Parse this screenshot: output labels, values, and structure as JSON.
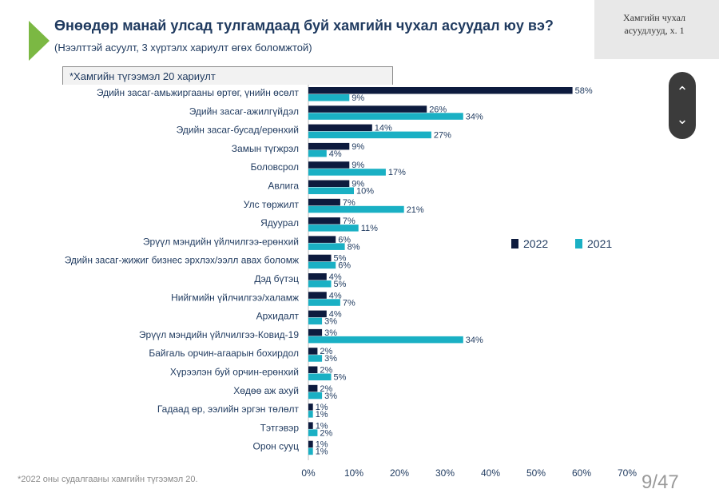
{
  "header": {
    "title": "Өнөөдөр манай улсад тулгамдаад буй хамгийн чухал асуудал юу вэ?",
    "subtitle": "(Нээлттэй асуулт, 3 хүртэлх хариулт өгөх боломжтой)",
    "corner_tag_line1": "Хамгийн чухал",
    "corner_tag_line2": "асуудлууд, х. 1",
    "filter_tag": "*Хамгийн түгээмэл 20 хариулт"
  },
  "nav": {
    "up_icon": "chevron-up-icon",
    "down_icon": "chevron-down-icon",
    "up_glyph": "⌃",
    "down_glyph": "⌄"
  },
  "footer": {
    "footnote": "*2022 оны судалгааны хамгийн түгээмэл 20.",
    "pager": "9/47"
  },
  "colors": {
    "s2022": "#0d1b3e",
    "s2021": "#1ab0c4",
    "accent_green": "#7bb843"
  },
  "chart_data": {
    "type": "bar",
    "orientation": "horizontal",
    "categories": [
      "Эдийн засаг-амьжиргааны өртөг, үнийн өсөлт",
      "Эдийн засаг-ажилгүйдэл",
      "Эдийн засаг-бусад/ерөнхий",
      "Замын түгжрэл",
      "Боловсрол",
      "Авлига",
      "Улс төржилт",
      "Ядуурал",
      "Эрүүл мэндийн үйлчилгээ-ерөнхий",
      "Эдийн засаг-жижиг бизнес эрхлэх/ээлл авах боломж",
      "Дэд бүтэц",
      "Нийгмийн үйлчилгээ/халамж",
      "Архидалт",
      "Эрүүл мэндийн үйлчилгээ-Ковид-19",
      "Байгаль орчин-агаарын бохирдол",
      "Хүрээлэн буй орчин-ерөнхий",
      "Хөдөө аж ахуй",
      "Гадаад өр, ээлийн эргэн төлөлт",
      "Тэтгэвэр",
      "Орон сууц"
    ],
    "series": [
      {
        "name": "2022",
        "values": [
          58,
          26,
          14,
          9,
          9,
          9,
          7,
          7,
          6,
          5,
          4,
          4,
          4,
          3,
          2,
          2,
          2,
          1,
          1,
          1
        ]
      },
      {
        "name": "2021",
        "values": [
          9,
          34,
          27,
          4,
          17,
          10,
          21,
          11,
          8,
          6,
          5,
          7,
          3,
          34,
          3,
          5,
          3,
          1,
          2,
          1
        ]
      }
    ],
    "value_suffix": "%",
    "xlim": [
      0,
      70
    ],
    "x_ticks": [
      "0%",
      "10%",
      "20%",
      "30%",
      "40%",
      "50%",
      "60%",
      "70%"
    ],
    "legend_position": "right"
  }
}
